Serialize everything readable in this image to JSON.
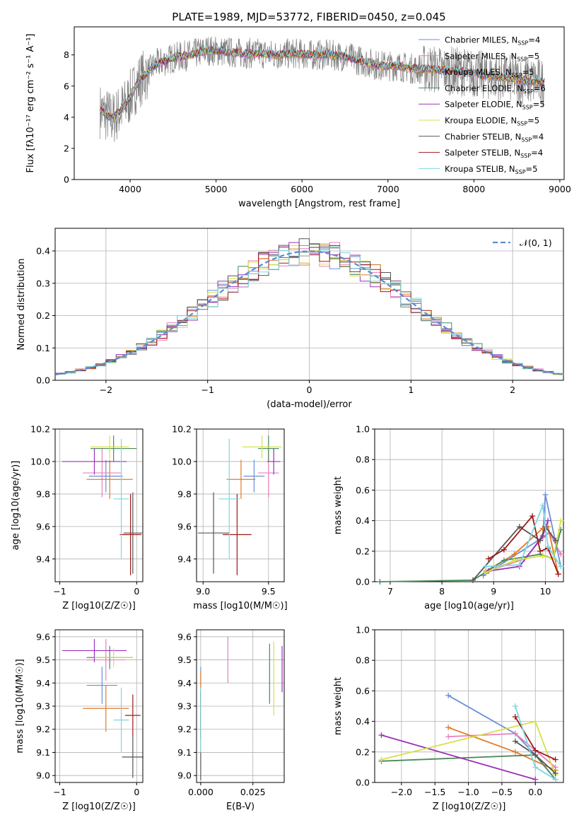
{
  "figure_title": "PLATE=1989, MJD=53772, FIBERID=0450, z=0.045",
  "chart_data": [
    {
      "id": "spectrum",
      "type": "line",
      "xlabel": "wavelength [Angstrom, rest frame]",
      "ylabel": "Flux [fλ10⁻¹⁷ erg cm⁻² s⁻¹ A⁻¹]",
      "xlim": [
        3350,
        9050
      ],
      "ylim": [
        0,
        9.8
      ],
      "xticks": [
        4000,
        5000,
        6000,
        7000,
        8000,
        9000
      ],
      "yticks": [
        0,
        2,
        4,
        6,
        8
      ],
      "grid": false,
      "legend_position": "top-right",
      "series": [
        {
          "name": "Chabrier MILES, N_SSP=4",
          "legend": "Chabrier MILES, N",
          "n": "4",
          "color": "#6a8fd8"
        },
        {
          "name": "Salpeter MILES, N_SSP=5",
          "legend": "Salpeter MILES, N",
          "n": "5",
          "color": "#e87fbf"
        },
        {
          "name": "Kroupa MILES, N_SSP=5",
          "legend": "Kroupa MILES, N",
          "n": "5",
          "color": "#e07b2a"
        },
        {
          "name": "Chabrier ELODIE, N_SSP=6",
          "legend": "Chabrier ELODIE, N",
          "n": "6",
          "color": "#4a8a5a"
        },
        {
          "name": "Salpeter ELODIE, N_SSP=5",
          "legend": "Salpeter ELODIE, N",
          "n": "5",
          "color": "#9b30b8"
        },
        {
          "name": "Kroupa ELODIE, N_SSP=5",
          "legend": "Kroupa ELODIE, N",
          "n": "5",
          "color": "#d8e048"
        },
        {
          "name": "Chabrier STELIB, N_SSP=4",
          "legend": "Chabrier STELIB, N",
          "n": "4",
          "color": "#555555"
        },
        {
          "name": "Salpeter STELIB, N_SSP=4",
          "legend": "Salpeter STELIB, N",
          "n": "4",
          "color": "#a01818"
        },
        {
          "name": "Kroupa STELIB, N_SSP=5",
          "legend": "Kroupa STELIB, N",
          "n": "5",
          "color": "#7dd8e0"
        }
      ],
      "data_color": "#808080",
      "x": [
        3650,
        3800,
        3950,
        4100,
        4300,
        4500,
        4700,
        4900,
        5100,
        5300,
        5500,
        5700,
        5900,
        6100,
        6300,
        6500,
        6700,
        6900,
        7100,
        7300,
        7500,
        7700,
        7900,
        8100,
        8300,
        8500,
        8700,
        8820
      ],
      "model_flux": [
        4.4,
        3.9,
        4.8,
        6.3,
        7.4,
        7.8,
        8.0,
        8.3,
        8.2,
        8.1,
        8.1,
        8.0,
        8.1,
        8.0,
        8.0,
        7.9,
        7.6,
        7.3,
        7.3,
        7.1,
        7.1,
        7.0,
        6.9,
        6.7,
        6.6,
        6.4,
        6.3,
        6.2
      ]
    },
    {
      "id": "residuals",
      "type": "bar",
      "xlabel": "(data-model)/error",
      "ylabel": "Normed distribution",
      "xlim": [
        -2.5,
        2.5
      ],
      "ylim": [
        0,
        0.47
      ],
      "xticks": [
        -2,
        -1,
        0,
        1,
        2
      ],
      "yticks": [
        0.0,
        0.1,
        0.2,
        0.3,
        0.4
      ],
      "grid": true,
      "legend_position": "top-right",
      "legend_label": "𝒩(0, 1)",
      "normal_color": "#5b8bd9",
      "bin_width": 0.1,
      "bin_start": -2.5
    },
    {
      "id": "age-vs-z",
      "type": "scatter",
      "xlabel": "Z [log10(Z/Z☉)]",
      "ylabel": "age [log10(age/yr)]",
      "xlim": [
        -1.06,
        0.08
      ],
      "ylim": [
        9.26,
        10.2
      ],
      "xticks": [
        -1,
        0
      ],
      "yticks": [
        9.4,
        9.6,
        9.8,
        10.0,
        10.2
      ],
      "grid": true,
      "points": [
        {
          "x": -0.4,
          "xerr": 0.22,
          "y": 9.91,
          "yerr": 0.1,
          "series": 0
        },
        {
          "x": -0.45,
          "xerr": 0.25,
          "y": 9.93,
          "yerr": 0.15,
          "series": 1
        },
        {
          "x": -0.35,
          "xerr": 0.3,
          "y": 9.89,
          "yerr": 0.12,
          "series": 2
        },
        {
          "x": -0.3,
          "xerr": 0.3,
          "y": 10.08,
          "yerr": 0.08,
          "series": 3
        },
        {
          "x": -0.55,
          "xerr": 0.42,
          "y": 10.0,
          "yerr": 0.08,
          "series": 4
        },
        {
          "x": -0.35,
          "xerr": 0.25,
          "y": 10.09,
          "yerr": 0.07,
          "series": 5
        },
        {
          "x": -0.05,
          "xerr": 0.12,
          "y": 9.56,
          "yerr": 0.25,
          "series": 6
        },
        {
          "x": -0.08,
          "xerr": 0.14,
          "y": 9.55,
          "yerr": 0.25,
          "series": 7
        },
        {
          "x": -0.2,
          "xerr": 0.1,
          "y": 9.77,
          "yerr": 0.37,
          "series": 8
        }
      ]
    },
    {
      "id": "age-vs-mass",
      "type": "scatter",
      "xlabel": "mass [log10(M/M☉)]",
      "ylabel": "",
      "xlim": [
        8.95,
        9.62
      ],
      "ylim": [
        9.26,
        10.2
      ],
      "xticks": [
        9.0,
        9.5
      ],
      "yticks": [
        9.4,
        9.6,
        9.8,
        10.0,
        10.2
      ],
      "grid": true,
      "points": [
        {
          "x": 9.39,
          "xerr": 0.08,
          "y": 9.91,
          "yerr": 0.1,
          "series": 0
        },
        {
          "x": 9.5,
          "xerr": 0.08,
          "y": 9.93,
          "yerr": 0.15,
          "series": 1
        },
        {
          "x": 9.29,
          "xerr": 0.11,
          "y": 9.89,
          "yerr": 0.12,
          "series": 2
        },
        {
          "x": 9.5,
          "xerr": 0.08,
          "y": 10.08,
          "yerr": 0.08,
          "series": 3
        },
        {
          "x": 9.54,
          "xerr": 0.05,
          "y": 10.0,
          "yerr": 0.08,
          "series": 4
        },
        {
          "x": 9.45,
          "xerr": 0.15,
          "y": 10.09,
          "yerr": 0.07,
          "series": 5
        },
        {
          "x": 9.08,
          "xerr": 0.12,
          "y": 9.56,
          "yerr": 0.25,
          "series": 6
        },
        {
          "x": 9.26,
          "xerr": 0.11,
          "y": 9.55,
          "yerr": 0.25,
          "series": 7
        },
        {
          "x": 9.2,
          "xerr": 0.08,
          "y": 9.77,
          "yerr": 0.37,
          "series": 8
        }
      ]
    },
    {
      "id": "weight-vs-age",
      "type": "line",
      "xlabel": "age [log10(age/yr)]",
      "ylabel": "mass weight",
      "xlim": [
        6.7,
        10.35
      ],
      "ylim": [
        0,
        1.0
      ],
      "xticks": [
        7,
        8,
        9,
        10
      ],
      "yticks": [
        0.0,
        0.2,
        0.4,
        0.6,
        0.8,
        1.0
      ],
      "grid": true,
      "series": [
        {
          "series": 0,
          "x": [
            8.8,
            9.95,
            10.0,
            10.3
          ],
          "y": [
            0.04,
            0.29,
            0.57,
            0.1
          ]
        },
        {
          "series": 1,
          "x": [
            8.9,
            9.6,
            9.95,
            10.08,
            10.3
          ],
          "y": [
            0.07,
            0.15,
            0.29,
            0.32,
            0.18
          ]
        },
        {
          "series": 2,
          "x": [
            8.85,
            9.4,
            9.95,
            10.05,
            10.25
          ],
          "y": [
            0.07,
            0.18,
            0.35,
            0.36,
            0.05
          ]
        },
        {
          "series": 3,
          "x": [
            6.8,
            8.6,
            9.2,
            9.9,
            10.15,
            10.3
          ],
          "y": [
            0.0,
            0.01,
            0.14,
            0.18,
            0.15,
            0.34
          ]
        },
        {
          "series": 4,
          "x": [
            8.9,
            9.5,
            9.95,
            10.05
          ],
          "y": [
            0.07,
            0.1,
            0.3,
            0.4
          ]
        },
        {
          "series": 5,
          "x": [
            8.85,
            9.4,
            9.95,
            10.15,
            10.3
          ],
          "y": [
            0.06,
            0.14,
            0.17,
            0.15,
            0.4
          ]
        },
        {
          "series": 6,
          "x": [
            8.6,
            9.5,
            9.9,
            10.0,
            10.2
          ],
          "y": [
            0.01,
            0.36,
            0.27,
            0.36,
            0.27
          ]
        },
        {
          "series": 7,
          "x": [
            8.9,
            9.2,
            9.75,
            9.9,
            10.05,
            10.25
          ],
          "y": [
            0.15,
            0.21,
            0.43,
            0.2,
            0.22,
            0.05
          ]
        },
        {
          "series": 8,
          "x": [
            8.85,
            9.5,
            9.95,
            10.05,
            10.3
          ],
          "y": [
            0.1,
            0.11,
            0.5,
            0.23,
            0.1
          ]
        }
      ]
    },
    {
      "id": "mass-vs-z",
      "type": "scatter",
      "xlabel": "Z [log10(Z/Z☉)]",
      "ylabel": "mass [log10(M/M☉)]",
      "xlim": [
        -1.06,
        0.08
      ],
      "ylim": [
        8.97,
        9.63
      ],
      "xticks": [
        -1,
        0
      ],
      "yticks": [
        9.0,
        9.1,
        9.2,
        9.3,
        9.4,
        9.5,
        9.6
      ],
      "grid": true,
      "points": [
        {
          "x": -0.45,
          "xerr": 0.2,
          "y": 9.39,
          "yerr": 0.08,
          "series": 0
        },
        {
          "x": -0.4,
          "xerr": 0.25,
          "y": 9.5,
          "yerr": 0.09,
          "series": 1
        },
        {
          "x": -0.4,
          "xerr": 0.3,
          "y": 9.29,
          "yerr": 0.1,
          "series": 2
        },
        {
          "x": -0.35,
          "xerr": 0.3,
          "y": 9.51,
          "yerr": 0.05,
          "series": 3
        },
        {
          "x": -0.55,
          "xerr": 0.42,
          "y": 9.54,
          "yerr": 0.05,
          "series": 4
        },
        {
          "x": -0.3,
          "xerr": 0.25,
          "y": 9.51,
          "yerr": 0.04,
          "series": 5
        },
        {
          "x": -0.05,
          "xerr": 0.14,
          "y": 9.08,
          "yerr": 0.09,
          "series": 6
        },
        {
          "x": -0.05,
          "xerr": 0.1,
          "y": 9.26,
          "yerr": 0.09,
          "series": 7
        },
        {
          "x": -0.2,
          "xerr": 0.1,
          "y": 9.24,
          "yerr": 0.14,
          "series": 8
        }
      ]
    },
    {
      "id": "mass-vs-ebv",
      "type": "scatter",
      "xlabel": "E(B-V)",
      "ylabel": "",
      "xlim": [
        -0.002,
        0.04
      ],
      "ylim": [
        8.97,
        9.63
      ],
      "xticks": [
        0.0,
        0.025
      ],
      "xtick_labels": [
        "0.000",
        "0.025"
      ],
      "yticks": [
        9.0,
        9.1,
        9.2,
        9.3,
        9.4,
        9.5,
        9.6
      ],
      "grid": true,
      "points": [
        {
          "x": 0.0,
          "y": 9.39,
          "yerr": 0.08,
          "series": 0
        },
        {
          "x": 0.013,
          "y": 9.5,
          "yerr": 0.1,
          "series": 1
        },
        {
          "x": 0.0,
          "y": 9.4,
          "yerr": 0.05,
          "series": 2
        },
        {
          "x": 0.033,
          "y": 9.44,
          "yerr": 0.13,
          "series": 3
        },
        {
          "x": 0.039,
          "y": 9.46,
          "yerr": 0.1,
          "series": 4
        },
        {
          "x": 0.035,
          "y": 9.42,
          "yerr": 0.16,
          "series": 5
        },
        {
          "x": 0.0,
          "y": 9.17,
          "yerr": 0.19,
          "series": 6
        },
        {
          "x": 0.0,
          "y": 9.26,
          "yerr": 0.1,
          "series": 7
        },
        {
          "x": 0.0,
          "y": 9.24,
          "yerr": 0.14,
          "series": 8
        }
      ]
    },
    {
      "id": "weight-vs-z",
      "type": "line",
      "xlabel": "Z [log10(Z/Z☉)]",
      "ylabel": "mass weight",
      "xlim": [
        -2.4,
        0.42
      ],
      "ylim": [
        0,
        1.0
      ],
      "xticks": [
        -2.0,
        -1.5,
        -1.0,
        -0.5,
        0.0
      ],
      "yticks": [
        0.0,
        0.2,
        0.4,
        0.6,
        0.8,
        1.0
      ],
      "grid": true,
      "series": [
        {
          "series": 0,
          "x": [
            -1.3,
            -0.3,
            0.0,
            0.3
          ],
          "y": [
            0.57,
            0.32,
            0.18,
            0.02
          ]
        },
        {
          "series": 1,
          "x": [
            -1.3,
            -0.3,
            0.3
          ],
          "y": [
            0.3,
            0.32,
            0.1
          ]
        },
        {
          "series": 2,
          "x": [
            -1.3,
            -0.3,
            0.3
          ],
          "y": [
            0.36,
            0.2,
            0.08
          ]
        },
        {
          "series": 3,
          "x": [
            -2.3,
            0.0,
            0.3
          ],
          "y": [
            0.14,
            0.18,
            0.02
          ]
        },
        {
          "series": 4,
          "x": [
            -2.3,
            0.0
          ],
          "y": [
            0.31,
            0.02
          ]
        },
        {
          "series": 5,
          "x": [
            -2.3,
            0.0,
            0.3
          ],
          "y": [
            0.15,
            0.4,
            0.05
          ]
        },
        {
          "series": 6,
          "x": [
            -0.3,
            0.0,
            0.3
          ],
          "y": [
            0.27,
            0.18,
            0.06
          ]
        },
        {
          "series": 7,
          "x": [
            -0.3,
            0.0,
            0.3
          ],
          "y": [
            0.43,
            0.21,
            0.15
          ]
        },
        {
          "series": 8,
          "x": [
            -0.3,
            0.0,
            0.3
          ],
          "y": [
            0.5,
            0.1,
            0.02
          ]
        }
      ]
    }
  ]
}
